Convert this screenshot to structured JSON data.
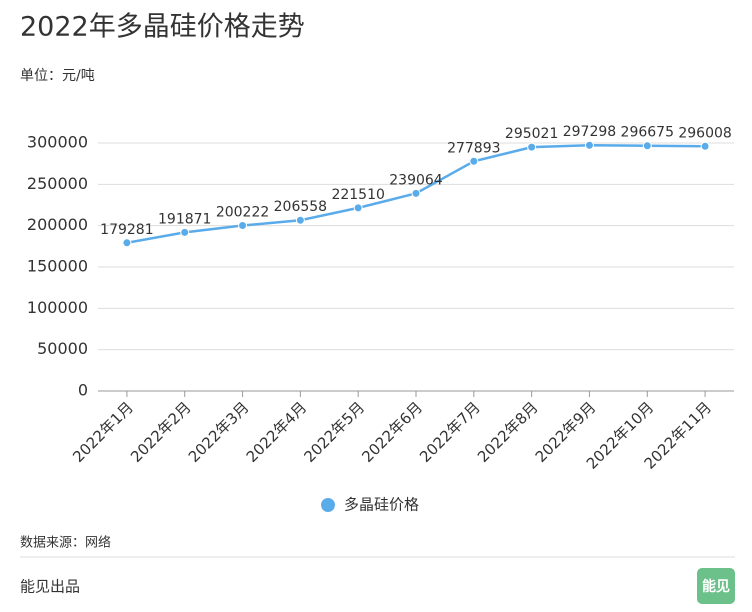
{
  "chart_data": {
    "type": "line",
    "title": "2022年多晶硅价格走势",
    "subtitle": "单位：元/吨",
    "categories": [
      "2022年1月",
      "2022年2月",
      "2022年3月",
      "2022年4月",
      "2022年5月",
      "2022年6月",
      "2022年7月",
      "2022年8月",
      "2022年9月",
      "2022年10月",
      "2022年11月"
    ],
    "series": [
      {
        "name": "多晶硅价格",
        "color": "#5aabea",
        "values": [
          179281,
          191871,
          200222,
          206558,
          221510,
          239064,
          277893,
          295021,
          297298,
          296675,
          296008
        ]
      }
    ],
    "ylim": [
      0,
      300000
    ],
    "yticks": [
      0,
      50000,
      100000,
      150000,
      200000,
      250000,
      300000
    ],
    "grid": true,
    "legend": "bottom",
    "source": "数据来源：网络"
  },
  "footer": {
    "credit": "能见出品",
    "logo": "能见"
  }
}
